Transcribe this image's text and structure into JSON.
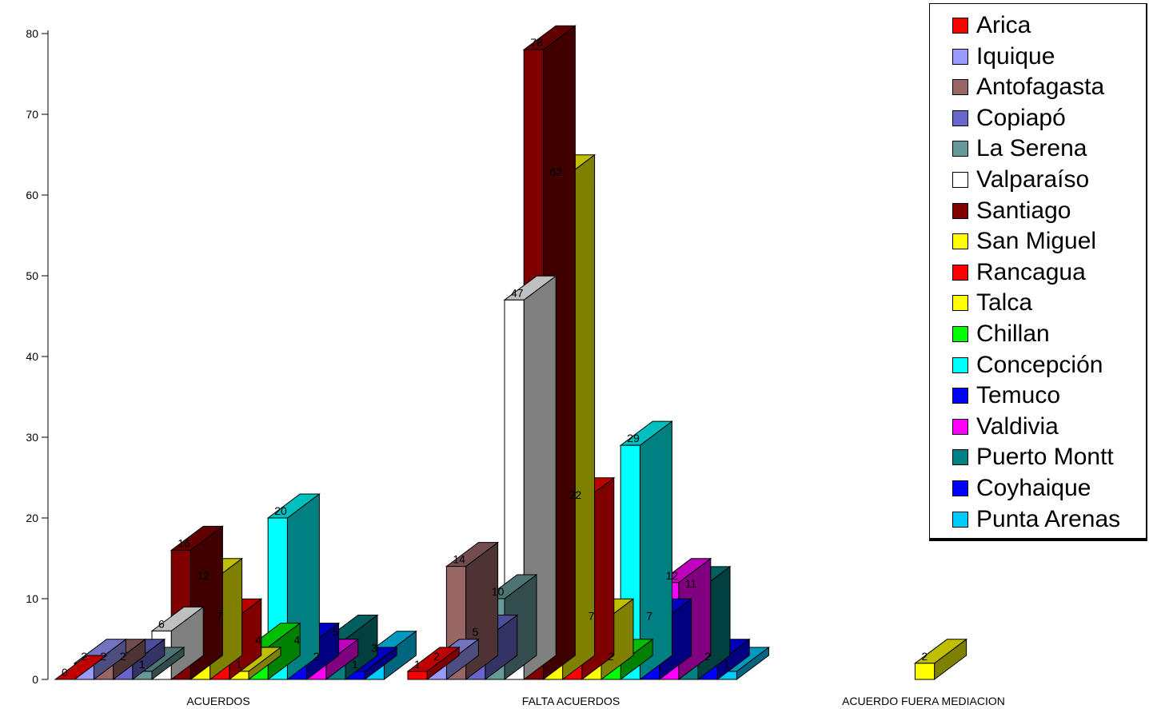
{
  "chart_data": {
    "type": "bar",
    "style": "3d-clustered",
    "categories": [
      "ACUERDOS",
      "FALTA ACUERDOS",
      "ACUERDO FUERA MEDIACION"
    ],
    "ylim": [
      0,
      80
    ],
    "yticks": [
      "0",
      "10",
      "20",
      "30",
      "40",
      "50",
      "60",
      "70",
      "80"
    ],
    "legend_position": "top-right",
    "series": [
      {
        "name": "Arica",
        "color": "#ff0000",
        "values": [
          0,
          1,
          null
        ],
        "labels": [
          "0",
          "1",
          ""
        ]
      },
      {
        "name": "Iquique",
        "color": "#9999ff",
        "values": [
          2,
          2,
          null
        ],
        "labels": [
          "2",
          "2",
          ""
        ]
      },
      {
        "name": "Antofagasta",
        "color": "#996666",
        "values": [
          2,
          14,
          null
        ],
        "labels": [
          "2",
          "14",
          ""
        ]
      },
      {
        "name": "Copiapó",
        "color": "#6666cc",
        "values": [
          2,
          5,
          null
        ],
        "labels": [
          "2",
          "5",
          ""
        ]
      },
      {
        "name": "La Serena",
        "color": "#669999",
        "values": [
          1,
          10,
          null
        ],
        "labels": [
          "1",
          "10",
          ""
        ]
      },
      {
        "name": "Valparaíso",
        "color": "#ffffff",
        "values": [
          6,
          47,
          null
        ],
        "labels": [
          "6",
          "47",
          ""
        ]
      },
      {
        "name": "Santiago",
        "color": "#800000",
        "values": [
          16,
          78,
          null
        ],
        "labels": [
          "16",
          "78",
          ""
        ]
      },
      {
        "name": "San Miguel",
        "color": "#ffff00",
        "values": [
          12,
          62,
          2
        ],
        "labels": [
          "12",
          "62",
          "2"
        ]
      },
      {
        "name": "Rancagua",
        "color": "#ff0000",
        "values": [
          7,
          22,
          null
        ],
        "labels": [
          "7",
          "22",
          ""
        ]
      },
      {
        "name": "Talca",
        "color": "#ffff00",
        "values": [
          1,
          7,
          null
        ],
        "labels": [
          "1",
          "7",
          ""
        ]
      },
      {
        "name": "Chillan",
        "color": "#00ff00",
        "values": [
          4,
          2,
          null
        ],
        "labels": [
          "4",
          "2",
          ""
        ]
      },
      {
        "name": "Concepción",
        "color": "#00ffff",
        "values": [
          20,
          29,
          null
        ],
        "labels": [
          "20",
          "29",
          ""
        ]
      },
      {
        "name": "Temuco",
        "color": "#0000ff",
        "values": [
          4,
          7,
          null
        ],
        "labels": [
          "4",
          "7",
          ""
        ]
      },
      {
        "name": "Valdivia",
        "color": "#ff00ff",
        "values": [
          2,
          12,
          null
        ],
        "labels": [
          "2",
          "12",
          ""
        ]
      },
      {
        "name": "Puerto Montt",
        "color": "#008080",
        "values": [
          5,
          11,
          null
        ],
        "labels": [
          "5",
          "11",
          ""
        ]
      },
      {
        "name": "Coyhaique",
        "color": "#0000ff",
        "values": [
          1,
          2,
          null
        ],
        "labels": [
          "1",
          "2",
          ""
        ]
      },
      {
        "name": "Punta Arenas",
        "color": "#00ccff",
        "values": [
          3,
          1,
          null
        ],
        "labels": [
          "3",
          "1",
          ""
        ]
      }
    ]
  }
}
